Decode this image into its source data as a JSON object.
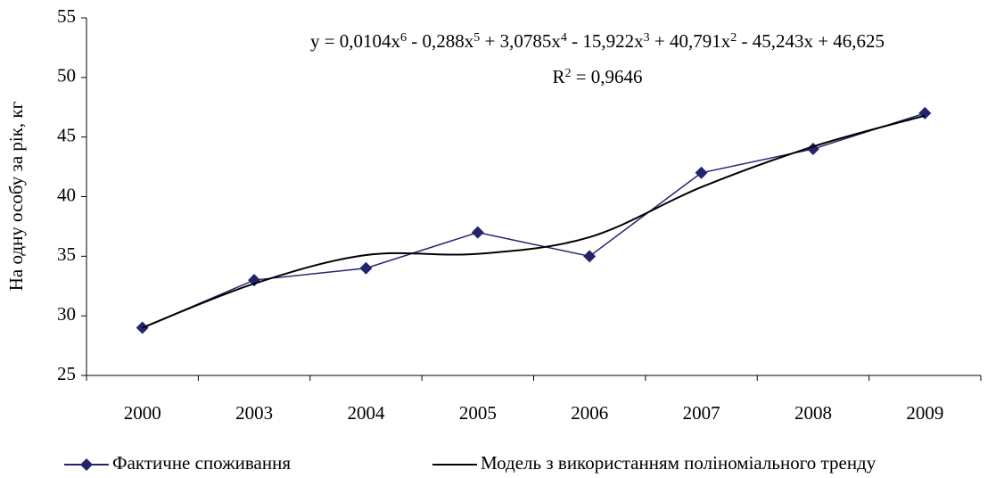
{
  "chart_data": {
    "type": "line",
    "equation_parts": [
      "y = 0,0104x",
      "6",
      " - 0,288x",
      "5",
      " + 3,0785x",
      "4",
      " - 15,922x",
      "3",
      " + 40,791x",
      "2",
      " - 45,243x + 46,625"
    ],
    "r2_parts": [
      "R",
      "2",
      " = 0,9646"
    ],
    "y_label": "На одну особу за рік, кг",
    "categories": [
      "2000",
      "2003",
      "2004",
      "2005",
      "2006",
      "2007",
      "2008",
      "2009"
    ],
    "series": [
      {
        "name": "Фактичне споживання",
        "color": "#24246e",
        "marker": "diamond",
        "smooth": false,
        "values": [
          29,
          33,
          34,
          37,
          35,
          42,
          44,
          47
        ]
      },
      {
        "name": "Модель з використанням поліноміального тренду",
        "color": "#000000",
        "marker": "none",
        "smooth": true,
        "values": [
          29,
          32.7,
          35.1,
          35.2,
          36.6,
          40.8,
          44.2,
          46.8
        ]
      }
    ],
    "ylim": [
      25,
      55
    ],
    "yticks": [
      25,
      30,
      35,
      40,
      45,
      50,
      55
    ],
    "grid": false,
    "legend": "bottom"
  }
}
